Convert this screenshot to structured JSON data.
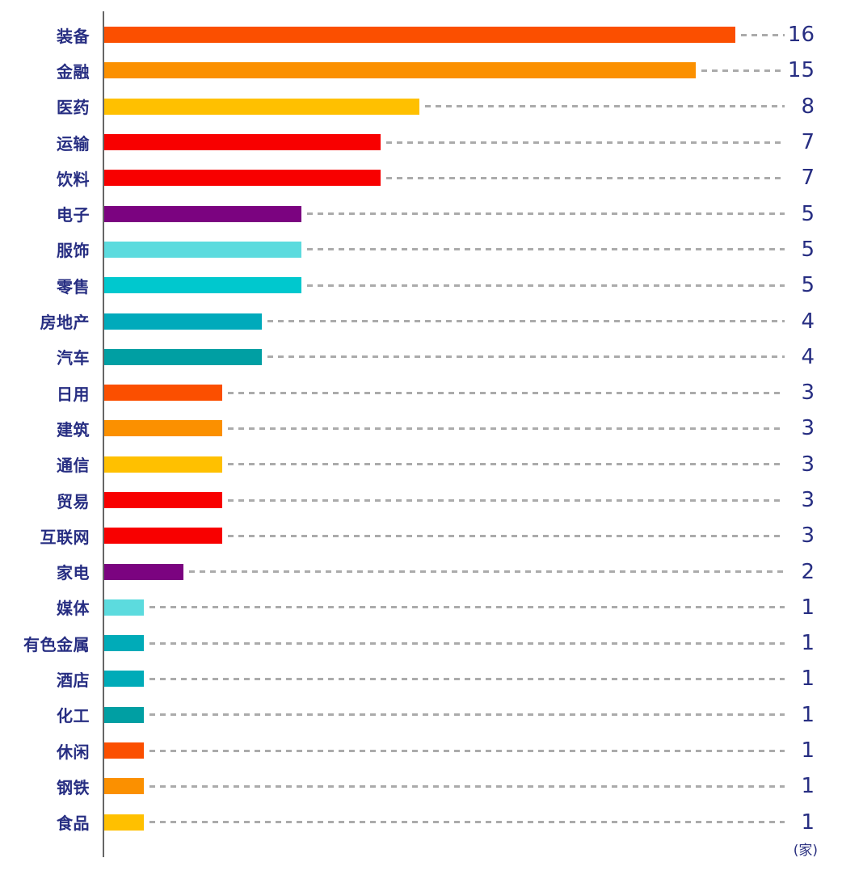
{
  "chart_data": {
    "type": "bar",
    "orientation": "horizontal",
    "title": "",
    "xlabel": "",
    "ylabel": "",
    "unit_label": "(家)",
    "xlim": [
      0,
      17
    ],
    "grid": false,
    "legend": "none",
    "value_labels_position": "right-edge",
    "leader_line_style": "dashed",
    "categories": [
      "装备",
      "金融",
      "医药",
      "运输",
      "饮料",
      "电子",
      "服饰",
      "零售",
      "房地产",
      "汽车",
      "日用",
      "建筑",
      "通信",
      "贸易",
      "互联网",
      "家电",
      "媒体",
      "有色金属",
      "酒店",
      "化工",
      "休闲",
      "钢铁",
      "食品"
    ],
    "values": [
      16,
      15,
      8,
      7,
      7,
      5,
      5,
      5,
      4,
      4,
      3,
      3,
      3,
      3,
      3,
      2,
      1,
      1,
      1,
      1,
      1,
      1,
      1
    ],
    "bar_colors": [
      "#FB4F00",
      "#FB9000",
      "#FFC000",
      "#F80000",
      "#F80000",
      "#7B0380",
      "#5CDBDE",
      "#00C8CE",
      "#00AABB",
      "#009FA3",
      "#FB4F00",
      "#FB9000",
      "#FFC000",
      "#F80000",
      "#F80000",
      "#7B0380",
      "#5CDBDE",
      "#00ABB8",
      "#00ABB8",
      "#009FA3",
      "#FB4F00",
      "#FB9000",
      "#FFC000"
    ]
  },
  "style": {
    "label_color": "#272E82",
    "value_color": "#272E82",
    "axis_color": "#666666",
    "leader_color": "#ABABAB",
    "background": "#FFFFFF"
  }
}
